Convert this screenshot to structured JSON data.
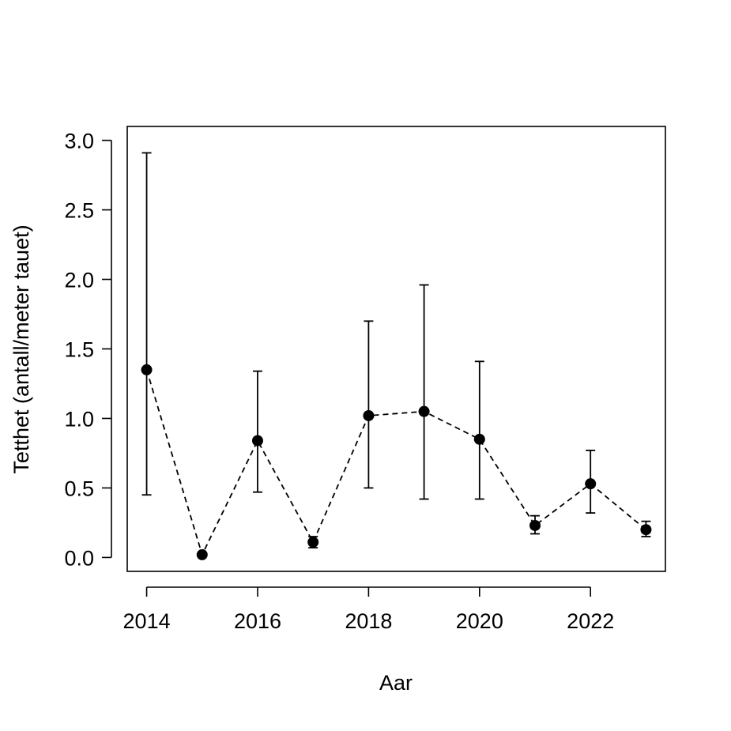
{
  "chart_data": {
    "type": "line",
    "title": "",
    "xlabel": "Aar",
    "ylabel": "Tetthet (antall/meter tauet)",
    "xlim": [
      2013.65,
      2023.35
    ],
    "ylim": [
      -0.1,
      3.1
    ],
    "x_ticks": [
      2014,
      2016,
      2018,
      2020,
      2022
    ],
    "y_ticks": [
      "0.0",
      "0.5",
      "1.0",
      "1.5",
      "2.0",
      "2.5",
      "3.0"
    ],
    "grid": false,
    "line_style": "dashed",
    "marker": "filled-circle",
    "color": "#000000",
    "series": [
      {
        "x": [
          2014,
          2015,
          2016,
          2017,
          2018,
          2019,
          2020,
          2021,
          2022,
          2023
        ],
        "y": [
          1.35,
          0.02,
          0.84,
          0.11,
          1.02,
          1.05,
          0.85,
          0.23,
          0.53,
          0.2
        ],
        "lower": [
          0.45,
          null,
          0.47,
          0.07,
          0.5,
          0.42,
          0.42,
          0.17,
          0.32,
          0.15
        ],
        "upper": [
          2.91,
          null,
          1.34,
          0.15,
          1.7,
          1.96,
          1.41,
          0.3,
          0.77,
          0.26
        ]
      }
    ]
  }
}
